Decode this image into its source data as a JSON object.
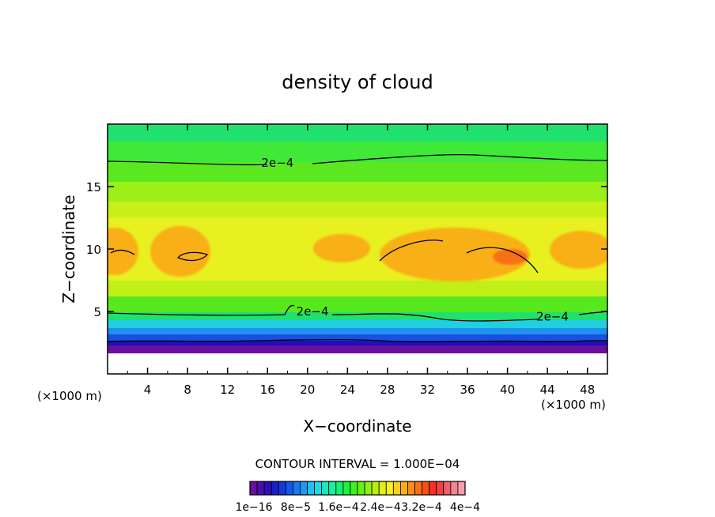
{
  "chart_data": {
    "type": "heatmap",
    "title": "density of cloud",
    "xlabel": "X−coordinate",
    "ylabel": "Z−coordinate",
    "x_unit": "(×1000 m)",
    "y_unit": "(×1000 m)",
    "xlim": [
      0,
      50
    ],
    "ylim": [
      0,
      20
    ],
    "xticks": [
      4,
      8,
      12,
      16,
      20,
      24,
      28,
      32,
      36,
      40,
      44,
      48
    ],
    "yticks": [
      5,
      10,
      15
    ],
    "contour_interval_label": "CONTOUR INTERVAL = 1.000E−04",
    "contour_labels": [
      {
        "text": "2e−4",
        "x": 17,
        "z": 16.9
      },
      {
        "text": "2e−4",
        "x": 20.5,
        "z": 5
      },
      {
        "text": "2e−4",
        "x": 44.5,
        "z": 4.6
      }
    ],
    "colorbar": {
      "colors": [
        "#6a0fa0",
        "#4b0fa8",
        "#2a10b8",
        "#1820c8",
        "#1838d8",
        "#1458e8",
        "#1a78f0",
        "#2098f0",
        "#20c0f0",
        "#20d8e0",
        "#18e8c0",
        "#18f0a0",
        "#18f070",
        "#20f040",
        "#40f020",
        "#68f010",
        "#90f010",
        "#b8f010",
        "#e0f018",
        "#f8f020",
        "#f8d020",
        "#f8b018",
        "#f89018",
        "#f87018",
        "#f85018",
        "#f83020",
        "#f04040",
        "#f06070",
        "#f08890",
        "#f8a0a8"
      ],
      "labels": [
        "1e−16",
        "8e−5",
        "1.6e−4",
        "2.4e−4",
        "3.2e−4",
        "4e−4"
      ]
    },
    "levels": {
      "min": 1e-16,
      "max": 0.0004,
      "interval": 0.0001
    },
    "grid": false
  }
}
